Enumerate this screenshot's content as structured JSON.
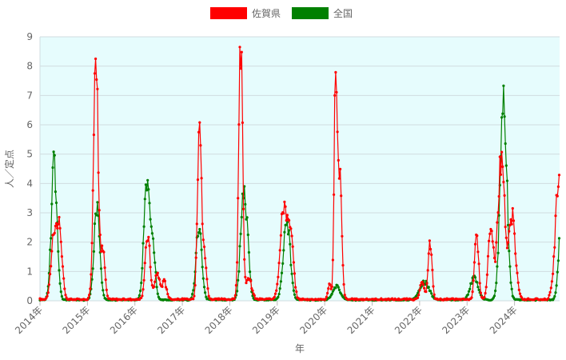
{
  "chart_data": {
    "type": "line",
    "xlabel": "年",
    "ylabel": "人／定点",
    "ylim": [
      0,
      9
    ],
    "yticks": [
      "0",
      "1",
      "2",
      "3",
      "4",
      "5",
      "6",
      "7",
      "8",
      "9"
    ],
    "xticks": [
      "2014年",
      "2015年",
      "2016年",
      "2017年",
      "2018年",
      "2019年",
      "2020年",
      "2021年",
      "2022年",
      "2023年",
      "2024年"
    ],
    "x_range": [
      2014.0,
      2024.95
    ],
    "grid": true,
    "legend_placement": "top",
    "plot_background": "#e6fcfd",
    "series": [
      {
        "name": "佐賀県",
        "color": "#ff0000",
        "peaks": [
          {
            "t": 2014.3,
            "h": 2.4,
            "w": 0.06
          },
          {
            "t": 2014.42,
            "h": 2.2,
            "w": 0.05
          },
          {
            "t": 2015.18,
            "h": 8.1,
            "w": 0.05
          },
          {
            "t": 2015.33,
            "h": 1.6,
            "w": 0.04
          },
          {
            "t": 2016.27,
            "h": 2.2,
            "w": 0.05
          },
          {
            "t": 2016.47,
            "h": 0.9,
            "w": 0.05
          },
          {
            "t": 2016.62,
            "h": 0.6,
            "w": 0.05
          },
          {
            "t": 2017.36,
            "h": 6.4,
            "w": 0.04
          },
          {
            "t": 2017.47,
            "h": 1.5,
            "w": 0.04
          },
          {
            "t": 2018.23,
            "h": 8.6,
            "w": 0.04
          },
          {
            "t": 2018.4,
            "h": 0.7,
            "w": 0.06
          },
          {
            "t": 2019.15,
            "h": 3.3,
            "w": 0.08
          },
          {
            "t": 2019.3,
            "h": 1.6,
            "w": 0.05
          },
          {
            "t": 2020.1,
            "h": 0.5,
            "w": 0.03
          },
          {
            "t": 2020.23,
            "h": 8.2,
            "w": 0.03
          },
          {
            "t": 2020.32,
            "h": 4.5,
            "w": 0.04
          },
          {
            "t": 2022.22,
            "h": 1.9,
            "w": 0.04
          },
          {
            "t": 2022.05,
            "h": 0.6,
            "w": 0.04
          },
          {
            "t": 2023.2,
            "h": 2.5,
            "w": 0.04
          },
          {
            "t": 2023.5,
            "h": 2.7,
            "w": 0.05
          },
          {
            "t": 2023.72,
            "h": 4.8,
            "w": 0.07
          },
          {
            "t": 2023.95,
            "h": 2.8,
            "w": 0.07
          },
          {
            "t": 2024.95,
            "h": 4.6,
            "w": 0.08
          }
        ],
        "baseline": 0.05
      },
      {
        "name": "全国",
        "color": "#008000",
        "peaks": [
          {
            "t": 2014.3,
            "h": 4.6,
            "w": 0.06
          },
          {
            "t": 2015.2,
            "h": 3.2,
            "w": 0.06
          },
          {
            "t": 2016.25,
            "h": 3.9,
            "w": 0.06
          },
          {
            "t": 2016.38,
            "h": 1.8,
            "w": 0.05
          },
          {
            "t": 2017.35,
            "h": 2.5,
            "w": 0.06
          },
          {
            "t": 2018.28,
            "h": 3.1,
            "w": 0.06
          },
          {
            "t": 2018.37,
            "h": 1.6,
            "w": 0.05
          },
          {
            "t": 2019.2,
            "h": 2.8,
            "w": 0.07
          },
          {
            "t": 2020.25,
            "h": 0.45,
            "w": 0.08
          },
          {
            "t": 2022.1,
            "h": 0.6,
            "w": 0.1
          },
          {
            "t": 2023.15,
            "h": 0.8,
            "w": 0.08
          },
          {
            "t": 2023.77,
            "h": 7.0,
            "w": 0.07
          },
          {
            "t": 2024.97,
            "h": 2.2,
            "w": 0.05
          }
        ],
        "baseline": 0.03
      }
    ]
  }
}
